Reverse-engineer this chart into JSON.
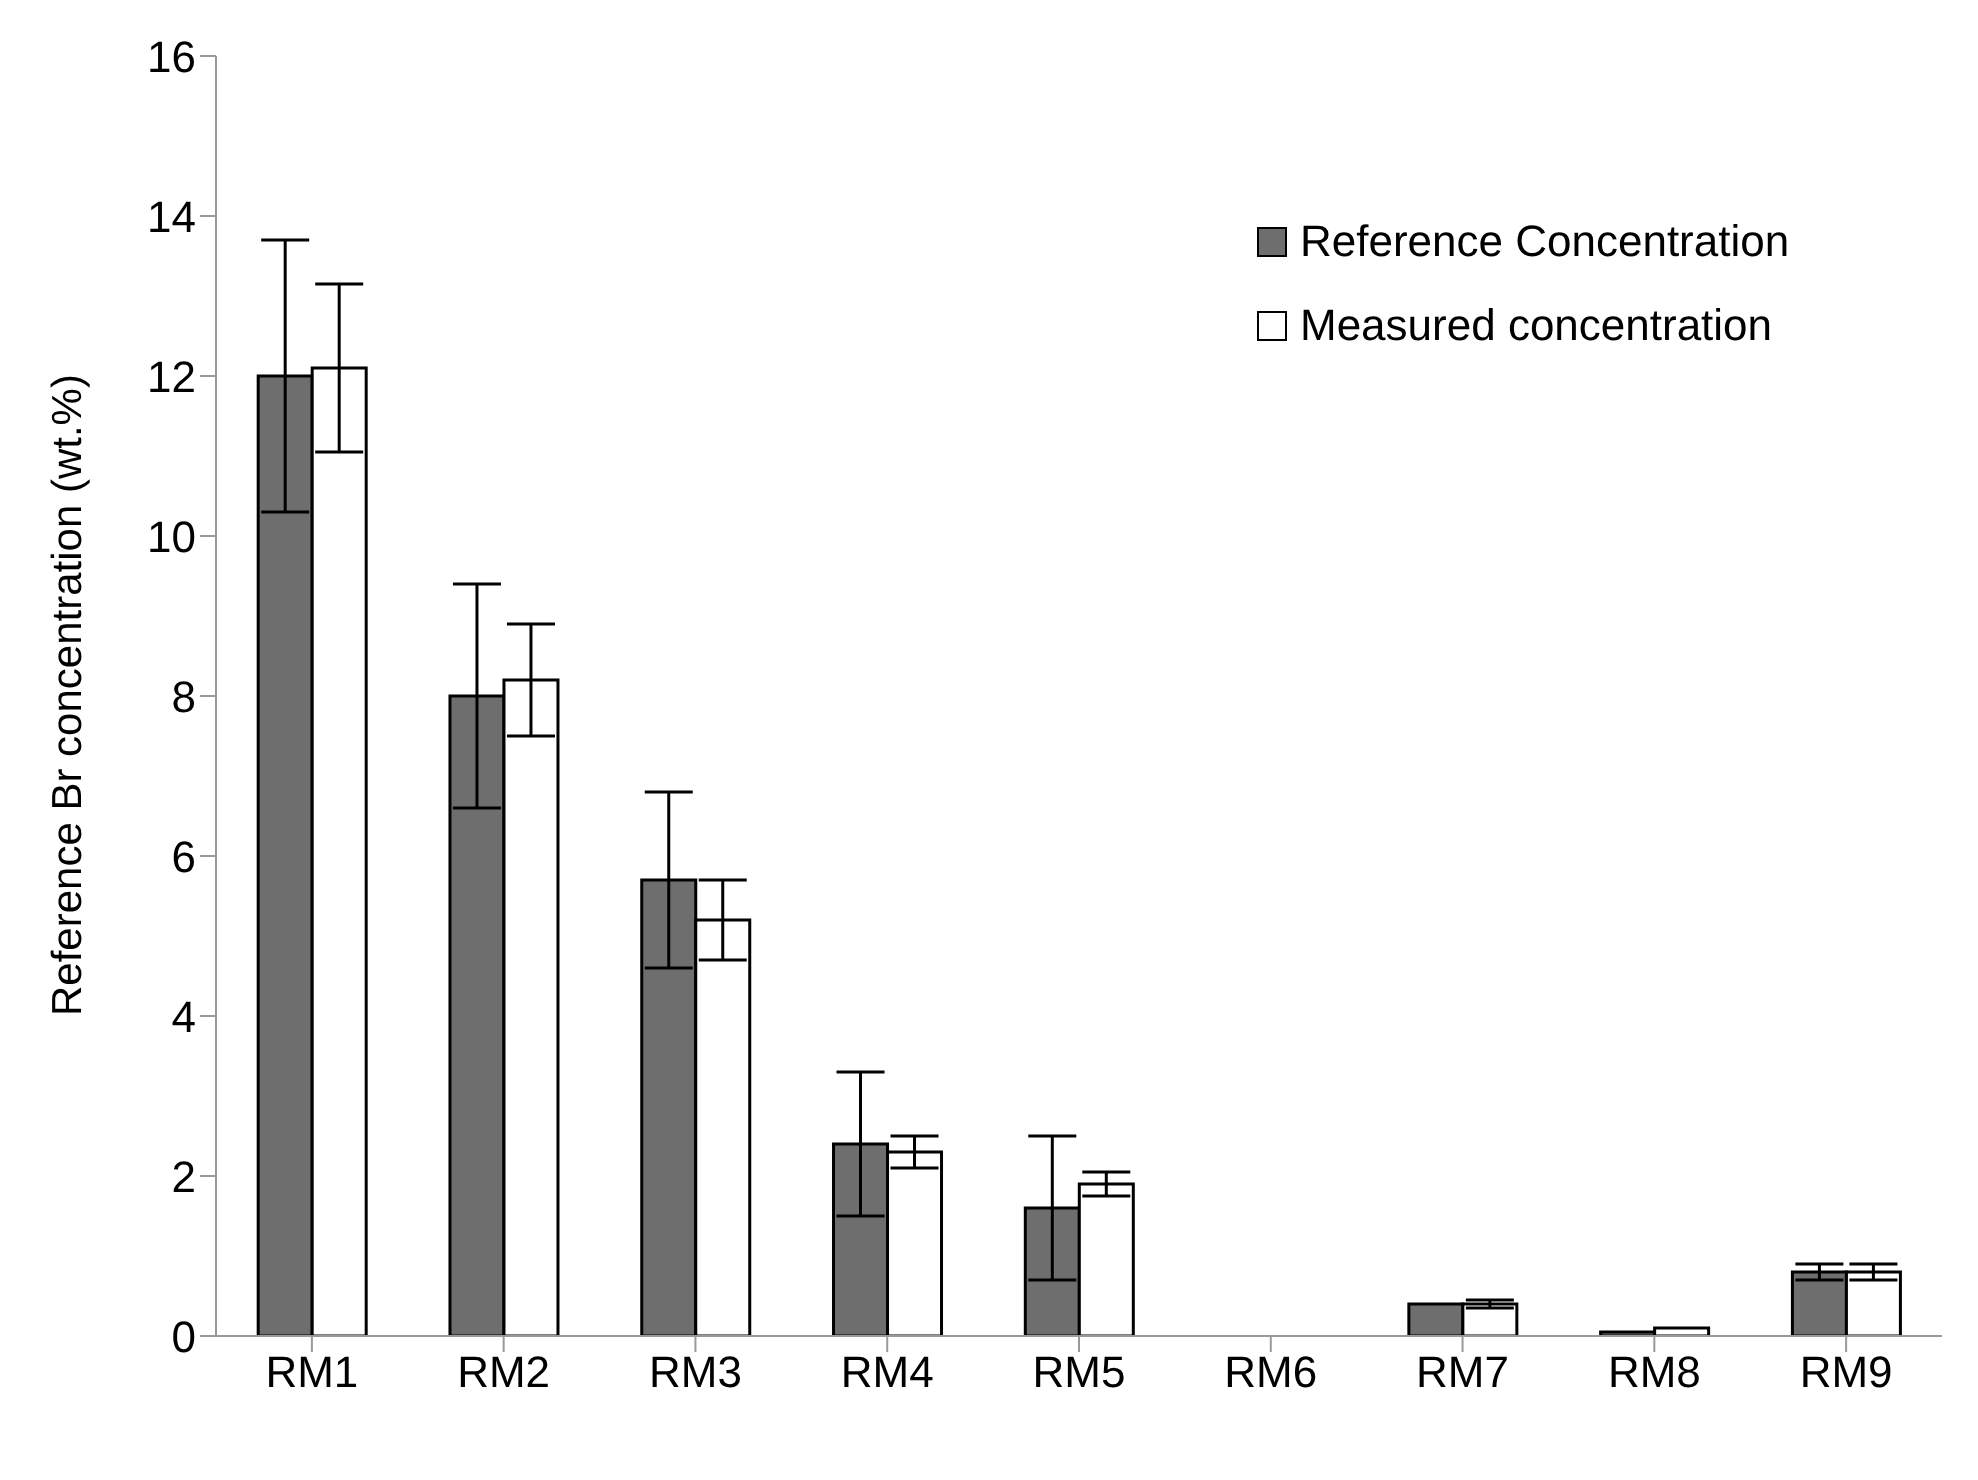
{
  "chart_data": {
    "type": "bar",
    "ylabel": "Reference Br concentration (wt.%)",
    "categories": [
      "RM1",
      "RM2",
      "RM3",
      "RM4",
      "RM5",
      "RM6",
      "RM7",
      "RM8",
      "RM9"
    ],
    "series": [
      {
        "name": "Reference Concentration",
        "color": "#6e6e6e",
        "values": [
          12.0,
          8.0,
          5.7,
          2.4,
          1.6,
          0,
          0.4,
          0.05,
          0.8
        ],
        "errors": [
          1.7,
          1.4,
          1.1,
          0.9,
          0.9,
          null,
          null,
          null,
          0.1
        ]
      },
      {
        "name": "Measured concentration",
        "color": "#ffffff",
        "values": [
          12.1,
          8.2,
          5.2,
          2.3,
          1.9,
          0,
          0.4,
          0.1,
          0.8
        ],
        "errors": [
          1.05,
          0.7,
          0.5,
          0.2,
          0.15,
          null,
          0.05,
          null,
          0.1
        ]
      }
    ],
    "ylim": [
      0,
      16
    ],
    "yticks": [
      0,
      2,
      4,
      6,
      8,
      10,
      12,
      14,
      16
    ],
    "grid": false,
    "legend": "top right"
  }
}
